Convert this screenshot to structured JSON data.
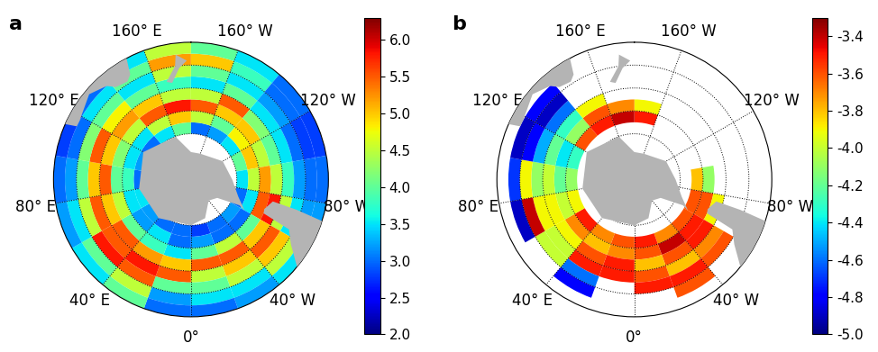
{
  "chart_data": [
    {
      "type": "polar_heatmap",
      "title": "a",
      "xlim": [
        -180,
        180
      ],
      "xticks": [
        {
          "value": 0,
          "label": "0°"
        },
        {
          "value": 40,
          "label": "40° E"
        },
        {
          "value": 80,
          "label": "80° E"
        },
        {
          "value": 120,
          "label": "120° E"
        },
        {
          "value": 160,
          "label": "160° E"
        },
        {
          "value": -160,
          "label": "160° W"
        },
        {
          "value": -120,
          "label": "120° W"
        },
        {
          "value": -80,
          "label": "80° W"
        },
        {
          "value": -40,
          "label": "40° W"
        }
      ],
      "ylim": [
        -90,
        -30
      ],
      "yticks": [
        -80,
        -70,
        -60,
        -50,
        -40
      ],
      "tick_labels": "x",
      "grid": true,
      "lon_edges": [
        -180,
        -160,
        -140,
        -120,
        -100,
        -80,
        -60,
        -40,
        -20,
        0,
        20,
        40,
        60,
        80,
        100,
        120,
        140,
        160,
        180
      ],
      "lat_edges": [
        -70,
        -65,
        -60,
        -55,
        -50,
        -45,
        -40,
        -35,
        -30
      ],
      "cells": [
        [
          3.0,
          3.2,
          3.5,
          4.0,
          3.5,
          3.0,
          3.2,
          3.0,
          2.8,
          3.0,
          3.0,
          3.2,
          3.5,
          3.0,
          3.2,
          3.0,
          3.5,
          4.0
        ],
        [
          4.5,
          4.0,
          4.8,
          5.0,
          4.5,
          3.5,
          3.0,
          3.0,
          3.2,
          3.0,
          3.5,
          3.2,
          3.5,
          3.8,
          3.5,
          3.5,
          4.5,
          5.0
        ],
        [
          5.5,
          5.0,
          5.0,
          4.5,
          5.2,
          5.5,
          4.0,
          4.5,
          4.0,
          3.5,
          3.8,
          4.0,
          4.5,
          4.0,
          4.2,
          4.5,
          5.5,
          5.8
        ],
        [
          4.5,
          5.5,
          4.2,
          4.0,
          4.5,
          5.8,
          5.0,
          5.5,
          5.5,
          5.0,
          5.2,
          5.5,
          5.0,
          5.5,
          5.0,
          5.2,
          5.0,
          4.5
        ],
        [
          3.5,
          4.0,
          3.5,
          3.5,
          3.8,
          4.5,
          5.5,
          5.0,
          4.5,
          5.5,
          5.8,
          5.5,
          5.5,
          5.0,
          5.5,
          4.8,
          4.0,
          3.8
        ],
        [
          4.0,
          3.5,
          3.2,
          3.0,
          3.2,
          3.5,
          5.0,
          4.5,
          4.0,
          4.0,
          5.5,
          5.8,
          4.5,
          4.0,
          4.2,
          4.0,
          3.5,
          4.5
        ],
        [
          5.0,
          3.8,
          3.0,
          2.8,
          3.0,
          3.2,
          4.5,
          3.5,
          3.5,
          3.2,
          4.5,
          4.0,
          3.5,
          3.2,
          3.0,
          3.5,
          4.0,
          5.2
        ],
        [
          4.0,
          3.5,
          3.0,
          2.8,
          3.0,
          3.2,
          3.5,
          3.2,
          3.0,
          3.0,
          4.0,
          3.5,
          3.2,
          3.0,
          2.8,
          3.0,
          3.5,
          4.5
        ]
      ],
      "colorbar": {
        "range": [
          2.0,
          6.3
        ],
        "ticks": [
          {
            "value": 2.0,
            "label": "2.0"
          },
          {
            "value": 2.5,
            "label": "2.5"
          },
          {
            "value": 3.0,
            "label": "3.0"
          },
          {
            "value": 3.5,
            "label": "3.5"
          },
          {
            "value": 4.0,
            "label": "4.0"
          },
          {
            "value": 4.5,
            "label": "4.5"
          },
          {
            "value": 5.0,
            "label": "5.0"
          },
          {
            "value": 5.5,
            "label": "5.5"
          },
          {
            "value": 6.0,
            "label": "6.0"
          }
        ]
      }
    },
    {
      "type": "polar_heatmap",
      "title": "b",
      "xlim": [
        -180,
        180
      ],
      "xticks": [
        {
          "value": 0,
          "label": "0°"
        },
        {
          "value": 40,
          "label": "40° E"
        },
        {
          "value": 80,
          "label": "80° E"
        },
        {
          "value": 120,
          "label": "120° E"
        },
        {
          "value": 160,
          "label": "160° E"
        },
        {
          "value": -160,
          "label": "160° W"
        },
        {
          "value": -120,
          "label": "120° W"
        },
        {
          "value": -80,
          "label": "80° W"
        },
        {
          "value": -40,
          "label": "40° W"
        }
      ],
      "ylim": [
        -90,
        -30
      ],
      "yticks": [
        -80,
        -70,
        -60,
        -50,
        -40
      ],
      "tick_labels": "x",
      "grid": true,
      "lon_edges": [
        -180,
        -160,
        -140,
        -120,
        -100,
        -80,
        -60,
        -40,
        -20,
        0,
        20,
        40,
        60,
        80,
        100,
        120,
        140,
        160,
        180
      ],
      "lat_edges": [
        -65,
        -60,
        -55,
        -50,
        -45,
        -40,
        -35
      ],
      "cells": [
        [
          -3.5,
          null,
          null,
          null,
          -3.8,
          -3.6,
          -3.6,
          -3.7,
          -3.5,
          -3.6,
          -3.7,
          -3.5,
          -3.9,
          -4.1,
          -4.3,
          -3.6,
          -3.5,
          -3.4
        ],
        [
          -3.9,
          null,
          null,
          null,
          -4.1,
          -3.6,
          -3.5,
          -3.4,
          -3.6,
          -3.7,
          -3.8,
          -3.7,
          -4.0,
          -4.2,
          -4.4,
          -4.1,
          -3.6,
          -3.7
        ],
        [
          null,
          null,
          null,
          null,
          null,
          -3.9,
          -3.5,
          -3.6,
          -3.8,
          -3.5,
          -3.6,
          -3.9,
          -3.9,
          -4.0,
          -4.2,
          -4.3,
          -3.9,
          null
        ],
        [
          null,
          null,
          null,
          null,
          null,
          null,
          -3.7,
          -3.8,
          -3.6,
          -3.5,
          -3.5,
          -4.0,
          -3.9,
          -4.1,
          -4.5,
          -4.6,
          null,
          null
        ],
        [
          null,
          null,
          null,
          null,
          null,
          null,
          -3.6,
          -3.5,
          -3.5,
          null,
          -4.6,
          -4.0,
          -3.4,
          -3.9,
          -4.8,
          -4.9,
          null,
          null
        ],
        [
          null,
          null,
          null,
          null,
          null,
          null,
          null,
          -3.6,
          null,
          null,
          -4.8,
          null,
          -4.9,
          -4.7,
          -4.9,
          -4.8,
          null,
          null
        ]
      ],
      "colorbar": {
        "range": [
          -5.0,
          -3.3
        ],
        "ticks": [
          {
            "value": -5.0,
            "label": "-5.0"
          },
          {
            "value": -4.8,
            "label": "-4.8"
          },
          {
            "value": -4.6,
            "label": "-4.6"
          },
          {
            "value": -4.4,
            "label": "-4.4"
          },
          {
            "value": -4.2,
            "label": "-4.2"
          },
          {
            "value": -4.0,
            "label": "-4.0"
          },
          {
            "value": -3.8,
            "label": "-3.8"
          },
          {
            "value": -3.6,
            "label": "-3.6"
          },
          {
            "value": -3.4,
            "label": "-3.4"
          }
        ]
      }
    }
  ]
}
